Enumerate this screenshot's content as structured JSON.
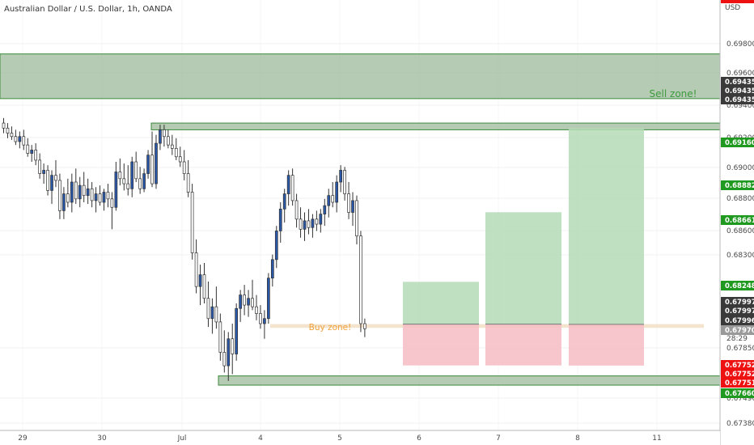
{
  "header": {
    "title": "Australian Dollar / U.S. Dollar, 1h, OANDA",
    "currency": "USD"
  },
  "colors": {
    "background": "#ffffff",
    "bull_body": "#2a57a6",
    "bear_body": "#ffffff",
    "wick": "#333333",
    "zone_green_fill": "#9cb99a",
    "zone_green_border": "#3d8a3d",
    "buy_zone_fill": "#f3e0c8",
    "target_fill": "#b4dab6",
    "stop_fill": "#f4bcc3",
    "sell_zone_text": "#3e9b3e",
    "buy_zone_text": "#f0a23a",
    "badge_green": "#209920",
    "badge_red": "#ee1111",
    "badge_dark": "#3a3a3a",
    "badge_gray": "#9a9a9a"
  },
  "annotations": {
    "sell_zone": "Sell zone!",
    "buy_zone": "Buy zone!",
    "countdown": "28:29"
  },
  "price_badges": [
    {
      "label": "0.69435",
      "color": "dark"
    },
    {
      "label": "0.69435",
      "color": "dark"
    },
    {
      "label": "0.69435",
      "color": "dark"
    },
    {
      "label": "0.69160",
      "color": "green"
    },
    {
      "label": "0.68882",
      "color": "green"
    },
    {
      "label": "0.68661",
      "color": "green"
    },
    {
      "label": "0.68248",
      "color": "green"
    },
    {
      "label": "0.67997",
      "color": "dark"
    },
    {
      "label": "0.67997",
      "color": "dark"
    },
    {
      "label": "0.67996",
      "color": "dark"
    },
    {
      "label": "0.67970",
      "color": "gray"
    },
    {
      "label": "0.67752",
      "color": "red"
    },
    {
      "label": "0.67752",
      "color": "red"
    },
    {
      "label": "0.67751",
      "color": "red"
    },
    {
      "label": "0.67660",
      "color": "green"
    }
  ],
  "chart_data": {
    "type": "candlestick",
    "title": "Australian Dollar / U.S. Dollar, 1h, OANDA",
    "ylabel": "USD",
    "ylim": [
      0.6732,
      0.6992
    ],
    "y_ticks": [
      "0.69800",
      "0.69600",
      "0.69400",
      "0.69200",
      "0.69000",
      "0.68800",
      "0.68600",
      "0.68300",
      "0.67850",
      "0.67490",
      "0.67380"
    ],
    "x_ticks": [
      "29",
      "30",
      "Jul",
      "4",
      "5",
      "6",
      "7",
      "8",
      "11"
    ],
    "candles_ohlc": [
      [
        0.6919,
        0.6922,
        0.6913,
        0.6916
      ],
      [
        0.6916,
        0.6919,
        0.691,
        0.6913
      ],
      [
        0.6913,
        0.6917,
        0.6909,
        0.6911
      ],
      [
        0.6911,
        0.6915,
        0.6906,
        0.6908
      ],
      [
        0.6908,
        0.6914,
        0.6904,
        0.6911
      ],
      [
        0.6911,
        0.6915,
        0.6903,
        0.6906
      ],
      [
        0.6906,
        0.691,
        0.6899,
        0.6901
      ],
      [
        0.6901,
        0.6906,
        0.6896,
        0.6903
      ],
      [
        0.6903,
        0.6907,
        0.6894,
        0.6897
      ],
      [
        0.6897,
        0.6901,
        0.6886,
        0.6889
      ],
      [
        0.6889,
        0.6895,
        0.6883,
        0.6891
      ],
      [
        0.6891,
        0.6894,
        0.6876,
        0.6879
      ],
      [
        0.6879,
        0.6891,
        0.6871,
        0.6888
      ],
      [
        0.6888,
        0.6897,
        0.6881,
        0.6885
      ],
      [
        0.6885,
        0.6889,
        0.6862,
        0.6867
      ],
      [
        0.6867,
        0.6881,
        0.6862,
        0.6877
      ],
      [
        0.6877,
        0.6886,
        0.6869,
        0.6872
      ],
      [
        0.6872,
        0.6889,
        0.6866,
        0.6884
      ],
      [
        0.6884,
        0.6892,
        0.6871,
        0.6874
      ],
      [
        0.6874,
        0.6887,
        0.6869,
        0.6882
      ],
      [
        0.6882,
        0.689,
        0.6872,
        0.6876
      ],
      [
        0.6876,
        0.6886,
        0.6871,
        0.688
      ],
      [
        0.688,
        0.6884,
        0.6869,
        0.6873
      ],
      [
        0.6873,
        0.6881,
        0.6866,
        0.6877
      ],
      [
        0.6877,
        0.6882,
        0.687,
        0.6872
      ],
      [
        0.6872,
        0.688,
        0.6867,
        0.6878
      ],
      [
        0.6878,
        0.6883,
        0.6869,
        0.6874
      ],
      [
        0.6874,
        0.6878,
        0.6856,
        0.6869
      ],
      [
        0.6869,
        0.6896,
        0.6867,
        0.689
      ],
      [
        0.689,
        0.6898,
        0.6882,
        0.6886
      ],
      [
        0.6886,
        0.6895,
        0.6879,
        0.6883
      ],
      [
        0.6883,
        0.6894,
        0.6876,
        0.688
      ],
      [
        0.688,
        0.6899,
        0.6875,
        0.6896
      ],
      [
        0.6896,
        0.6902,
        0.6884,
        0.6886
      ],
      [
        0.6886,
        0.6893,
        0.6877,
        0.688
      ],
      [
        0.688,
        0.6892,
        0.6878,
        0.6889
      ],
      [
        0.6889,
        0.6903,
        0.6886,
        0.69
      ],
      [
        0.69,
        0.6914,
        0.6881,
        0.6883
      ],
      [
        0.6883,
        0.6912,
        0.688,
        0.6907
      ],
      [
        0.6907,
        0.6918,
        0.6903,
        0.6915
      ],
      [
        0.6915,
        0.6918,
        0.6905,
        0.6911
      ],
      [
        0.6911,
        0.6915,
        0.6904,
        0.6906
      ],
      [
        0.6906,
        0.6912,
        0.69,
        0.6904
      ],
      [
        0.6904,
        0.691,
        0.6897,
        0.6899
      ],
      [
        0.6899,
        0.6905,
        0.6893,
        0.6896
      ],
      [
        0.6896,
        0.6903,
        0.6885,
        0.6889
      ],
      [
        0.6889,
        0.6897,
        0.6875,
        0.6878
      ],
      [
        0.6878,
        0.6883,
        0.6838,
        0.6842
      ],
      [
        0.6842,
        0.685,
        0.6818,
        0.6822
      ],
      [
        0.6822,
        0.6835,
        0.6811,
        0.6829
      ],
      [
        0.6829,
        0.6836,
        0.6812,
        0.6815
      ],
      [
        0.6815,
        0.6825,
        0.6798,
        0.6803
      ],
      [
        0.6803,
        0.6815,
        0.6794,
        0.681
      ],
      [
        0.681,
        0.6822,
        0.6797,
        0.6801
      ],
      [
        0.6801,
        0.6806,
        0.6778,
        0.6783
      ],
      [
        0.6783,
        0.6796,
        0.6771,
        0.6775
      ],
      [
        0.6775,
        0.6795,
        0.6766,
        0.6791
      ],
      [
        0.6791,
        0.68,
        0.677,
        0.6782
      ],
      [
        0.6782,
        0.6812,
        0.6778,
        0.6809
      ],
      [
        0.6809,
        0.682,
        0.6801,
        0.6817
      ],
      [
        0.6817,
        0.6823,
        0.6805,
        0.6811
      ],
      [
        0.6811,
        0.682,
        0.6804,
        0.6815
      ],
      [
        0.6815,
        0.6826,
        0.6808,
        0.681
      ],
      [
        0.681,
        0.6817,
        0.6802,
        0.6806
      ],
      [
        0.6806,
        0.6811,
        0.6797,
        0.68
      ],
      [
        0.68,
        0.6808,
        0.6791,
        0.6803
      ],
      [
        0.6803,
        0.683,
        0.68,
        0.6827
      ],
      [
        0.6827,
        0.6841,
        0.6822,
        0.6838
      ],
      [
        0.6838,
        0.6858,
        0.6833,
        0.6855
      ],
      [
        0.6855,
        0.6872,
        0.6848,
        0.6868
      ],
      [
        0.6868,
        0.688,
        0.686,
        0.6877
      ],
      [
        0.6877,
        0.6891,
        0.687,
        0.6888
      ],
      [
        0.6888,
        0.6892,
        0.687,
        0.6873
      ],
      [
        0.6873,
        0.6877,
        0.6857,
        0.6862
      ],
      [
        0.6862,
        0.6869,
        0.6851,
        0.6856
      ],
      [
        0.6856,
        0.6866,
        0.6849,
        0.6861
      ],
      [
        0.6861,
        0.6868,
        0.6853,
        0.6857
      ],
      [
        0.6857,
        0.6865,
        0.6851,
        0.6862
      ],
      [
        0.6862,
        0.6867,
        0.6855,
        0.6859
      ],
      [
        0.6859,
        0.6868,
        0.6854,
        0.6865
      ],
      [
        0.6865,
        0.6874,
        0.6858,
        0.687
      ],
      [
        0.687,
        0.688,
        0.6863,
        0.6876
      ],
      [
        0.6876,
        0.6884,
        0.6869,
        0.6872
      ],
      [
        0.6872,
        0.6888,
        0.6866,
        0.6884
      ],
      [
        0.6884,
        0.6894,
        0.6878,
        0.6891
      ],
      [
        0.6891,
        0.6893,
        0.6873,
        0.6877
      ],
      [
        0.6877,
        0.6884,
        0.6862,
        0.6866
      ],
      [
        0.6866,
        0.6878,
        0.6858,
        0.6873
      ],
      [
        0.6873,
        0.6876,
        0.6847,
        0.6852
      ],
      [
        0.6852,
        0.6855,
        0.6795,
        0.68
      ],
      [
        0.68,
        0.6803,
        0.6792,
        0.6797
      ]
    ],
    "zones": [
      {
        "name": "Sell zone!",
        "y_top": 0.696,
        "y_bottom": 0.69335
      },
      {
        "name": "0.69160 zone",
        "y_top": 0.6919,
        "y_bottom": 0.6915
      },
      {
        "name": "Buy zone!",
        "y_top": 0.67997,
        "y_bottom": 0.67975
      },
      {
        "name": "0.67660 zone",
        "y_top": 0.6769,
        "y_bottom": 0.67635
      }
    ],
    "trade_setups": [
      {
        "entry": 0.67997,
        "target": 0.68248,
        "stop": 0.67752
      },
      {
        "entry": 0.67997,
        "target": 0.68661,
        "stop": 0.67752
      },
      {
        "entry": 0.67996,
        "target": 0.6916,
        "stop": 0.67751
      }
    ],
    "current_price": 0.6797
  }
}
